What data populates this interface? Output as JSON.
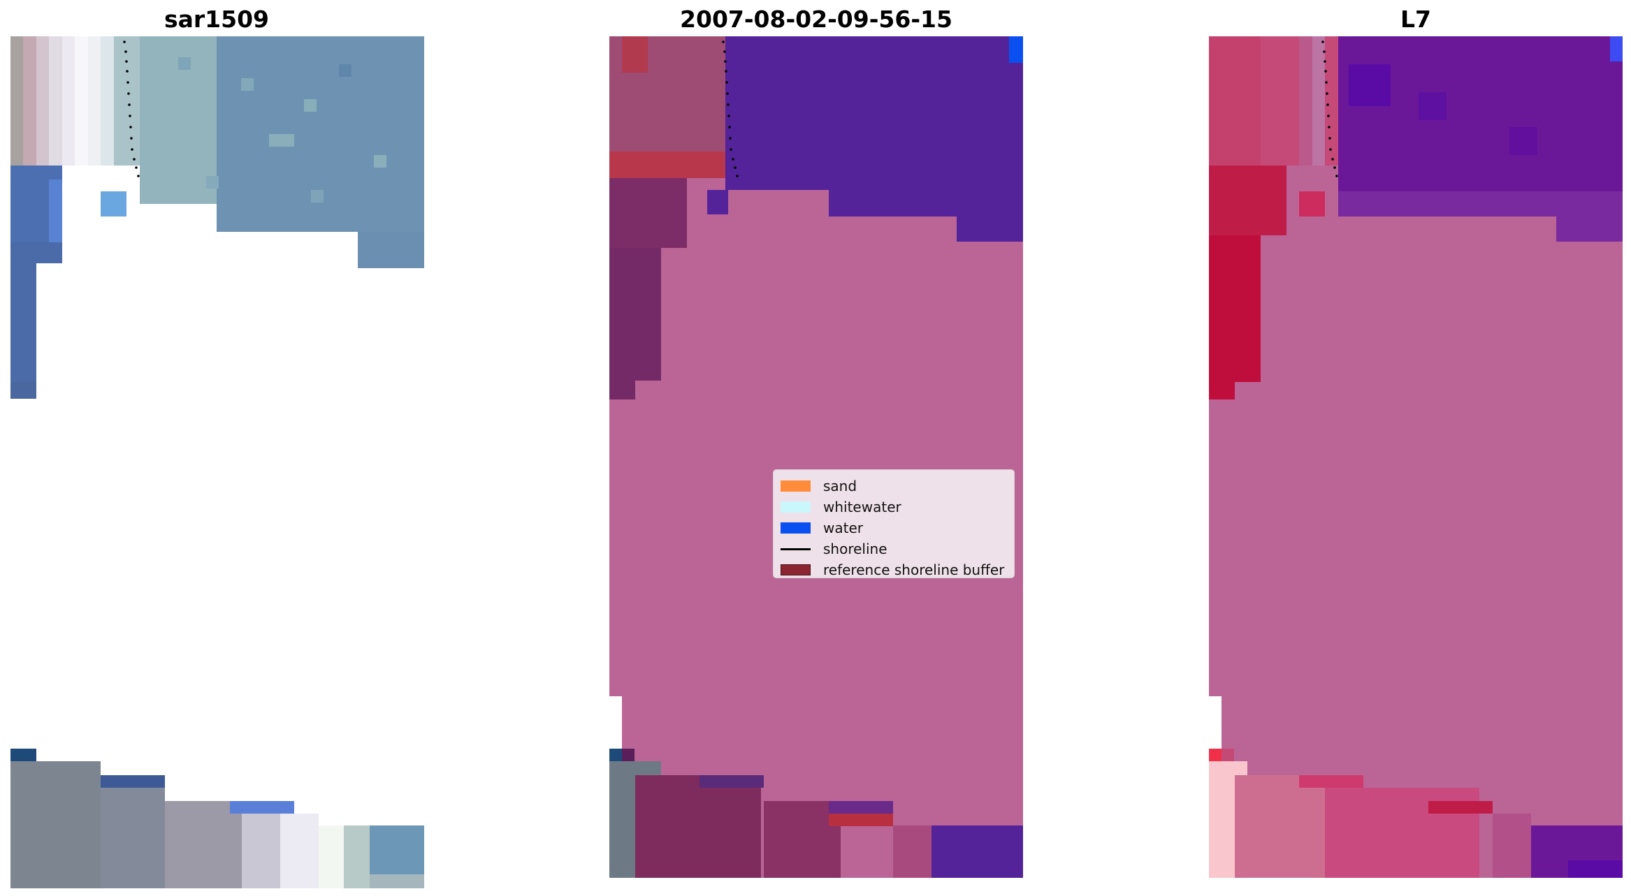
{
  "panels": [
    {
      "title": "sar1509"
    },
    {
      "title": "2007-08-02-09-56-15"
    },
    {
      "title": "L7"
    }
  ],
  "legend": {
    "items": [
      {
        "label": "sand",
        "color": "#ff8c3a",
        "kind": "patch"
      },
      {
        "label": "whitewater",
        "color": "#c9f7fb",
        "kind": "patch"
      },
      {
        "label": "water",
        "color": "#0a50f0",
        "kind": "patch"
      },
      {
        "label": "shoreline",
        "color": "#000000",
        "kind": "line"
      },
      {
        "label": "reference shoreline buffer",
        "color": "#8b2532",
        "kind": "patch"
      }
    ]
  }
}
